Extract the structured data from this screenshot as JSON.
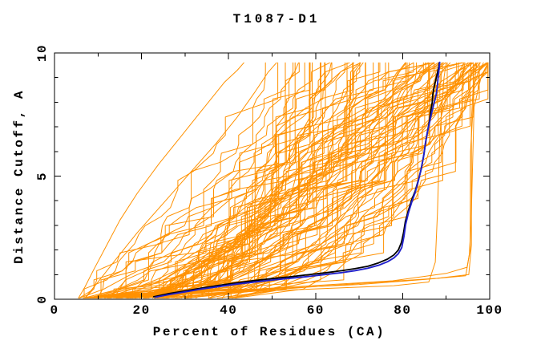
{
  "chart_data": {
    "type": "line",
    "title": "T1087-D1",
    "xlabel": "Percent of Residues (CA)",
    "ylabel": "Distance Cutoff, A",
    "xlim": [
      0,
      100
    ],
    "ylim": [
      0,
      10
    ],
    "x_major_ticks": [
      0,
      20,
      40,
      60,
      80,
      100
    ],
    "x_minor_step": 10,
    "y_major_ticks": [
      0,
      5,
      10
    ],
    "y_minor_step": 1,
    "grid": false,
    "legend": "none",
    "colors": {
      "background": "#FFFFFF",
      "axis": "#000000",
      "ensemble": "#FF9100",
      "highlighted": "#2121CC",
      "reference": "#000000"
    },
    "series": [
      {
        "name": "highlighted-model",
        "color": "#2121CC",
        "width": 1.9,
        "points": [
          [
            23.2,
            0.08
          ],
          [
            26,
            0.18
          ],
          [
            30,
            0.3
          ],
          [
            34,
            0.42
          ],
          [
            38,
            0.52
          ],
          [
            42,
            0.62
          ],
          [
            46,
            0.7
          ],
          [
            50,
            0.78
          ],
          [
            54,
            0.85
          ],
          [
            58,
            0.92
          ],
          [
            62,
            1.0
          ],
          [
            66,
            1.08
          ],
          [
            69,
            1.16
          ],
          [
            72,
            1.26
          ],
          [
            74.5,
            1.38
          ],
          [
            76.5,
            1.52
          ],
          [
            78,
            1.68
          ],
          [
            79,
            1.85
          ],
          [
            79.8,
            2.1
          ],
          [
            80.3,
            2.55
          ],
          [
            80.7,
            3.05
          ],
          [
            81.3,
            3.5
          ],
          [
            82.1,
            3.95
          ],
          [
            82.9,
            4.35
          ],
          [
            83.6,
            4.8
          ],
          [
            84.2,
            5.25
          ],
          [
            84.8,
            5.8
          ],
          [
            85.2,
            6.3
          ],
          [
            85.7,
            6.8
          ],
          [
            86.2,
            7.2
          ],
          [
            86.7,
            7.6
          ],
          [
            87.2,
            7.95
          ],
          [
            87.7,
            8.3
          ],
          [
            88.0,
            8.7
          ],
          [
            88.2,
            9.1
          ],
          [
            88.4,
            9.4
          ],
          [
            88.5,
            9.62
          ]
        ]
      },
      {
        "name": "reference-model",
        "color": "#000000",
        "width": 1.8,
        "points": [
          [
            22.8,
            0.1
          ],
          [
            26,
            0.22
          ],
          [
            30,
            0.34
          ],
          [
            34,
            0.46
          ],
          [
            38,
            0.57
          ],
          [
            42,
            0.67
          ],
          [
            46,
            0.76
          ],
          [
            50,
            0.84
          ],
          [
            54,
            0.91
          ],
          [
            58,
            0.99
          ],
          [
            62,
            1.07
          ],
          [
            66,
            1.16
          ],
          [
            69,
            1.24
          ],
          [
            72,
            1.34
          ],
          [
            74.5,
            1.48
          ],
          [
            76.5,
            1.63
          ],
          [
            78,
            1.8
          ],
          [
            79,
            2.0
          ],
          [
            79.7,
            2.3
          ],
          [
            80.2,
            2.7
          ],
          [
            80.6,
            3.15
          ],
          [
            81.3,
            3.6
          ],
          [
            82.1,
            4.05
          ],
          [
            82.9,
            4.4
          ],
          [
            83.7,
            4.9
          ],
          [
            84.3,
            5.3
          ],
          [
            84.9,
            5.9
          ],
          [
            85.3,
            6.4
          ],
          [
            85.8,
            6.9
          ],
          [
            86.2,
            7.3
          ],
          [
            86.5,
            7.7
          ],
          [
            86.8,
            8.0
          ],
          [
            86.9,
            8.3
          ],
          [
            87.2,
            8.6
          ],
          [
            87.6,
            8.9
          ],
          [
            88.0,
            9.2
          ],
          [
            88.3,
            9.45
          ],
          [
            88.4,
            9.6
          ]
        ]
      }
    ],
    "ensemble": {
      "name": "server-models",
      "color": "#FF9100",
      "width": 1,
      "count": 100,
      "seed": 42,
      "x_start_range": [
        5,
        42
      ],
      "x_top_range": [
        50,
        99.5
      ],
      "shape_exponent_range": [
        0.28,
        1.35
      ],
      "jitter": 3.2,
      "cutoff_range": [
        0.05,
        9.6
      ],
      "points_per_curve": 26,
      "plateau_prob": 0.12,
      "jump_prob": 0.08,
      "outliers": [
        [
          [
            5.5,
            0.05
          ],
          [
            7,
            0.5
          ],
          [
            9,
            1.2
          ],
          [
            12,
            2.2
          ],
          [
            15,
            3.2
          ],
          [
            19,
            4.3
          ],
          [
            24,
            5.5
          ],
          [
            29,
            6.6
          ],
          [
            34,
            7.7
          ],
          [
            39,
            8.8
          ],
          [
            42,
            9.3
          ],
          [
            43.5,
            9.6
          ]
        ],
        [
          [
            7,
            0.05
          ],
          [
            10,
            0.7
          ],
          [
            14,
            1.6
          ],
          [
            19,
            2.7
          ],
          [
            25,
            3.9
          ],
          [
            31,
            5.1
          ],
          [
            37,
            6.3
          ],
          [
            42,
            7.4
          ],
          [
            46,
            8.4
          ],
          [
            49,
            9.2
          ],
          [
            51,
            9.6
          ]
        ],
        [
          [
            9,
            0.05
          ],
          [
            30,
            0.2
          ],
          [
            55,
            0.45
          ],
          [
            75,
            0.7
          ],
          [
            88,
            0.85
          ],
          [
            95.2,
            1.0
          ],
          [
            95.8,
            2.2
          ],
          [
            95.8,
            7.3
          ],
          [
            96.2,
            8.6
          ],
          [
            97.5,
            9.3
          ],
          [
            99.3,
            9.6
          ]
        ],
        [
          [
            11,
            0.1
          ],
          [
            40,
            0.35
          ],
          [
            70,
            0.6
          ],
          [
            85,
            0.8
          ],
          [
            94.5,
            0.95
          ],
          [
            95.3,
            1.8
          ],
          [
            95.7,
            3.0
          ],
          [
            96.0,
            5.0
          ],
          [
            96.4,
            7.8
          ],
          [
            98,
            9.0
          ],
          [
            99.5,
            9.5
          ]
        ],
        [
          [
            13,
            0.1
          ],
          [
            45,
            0.4
          ],
          [
            77.7,
            0.75
          ],
          [
            90,
            1.05
          ],
          [
            94.8,
            1.3
          ],
          [
            95.5,
            2.0
          ],
          [
            95.6,
            6.0
          ],
          [
            96.5,
            8.8
          ],
          [
            97,
            9.55
          ]
        ],
        [
          [
            10,
            0.08
          ],
          [
            50,
            0.35
          ],
          [
            78,
            0.55
          ],
          [
            86,
            0.7
          ],
          [
            87.5,
            1.5
          ],
          [
            88,
            3.5
          ],
          [
            88.5,
            6.5
          ],
          [
            89.5,
            9.0
          ],
          [
            90,
            9.6
          ]
        ]
      ]
    }
  }
}
